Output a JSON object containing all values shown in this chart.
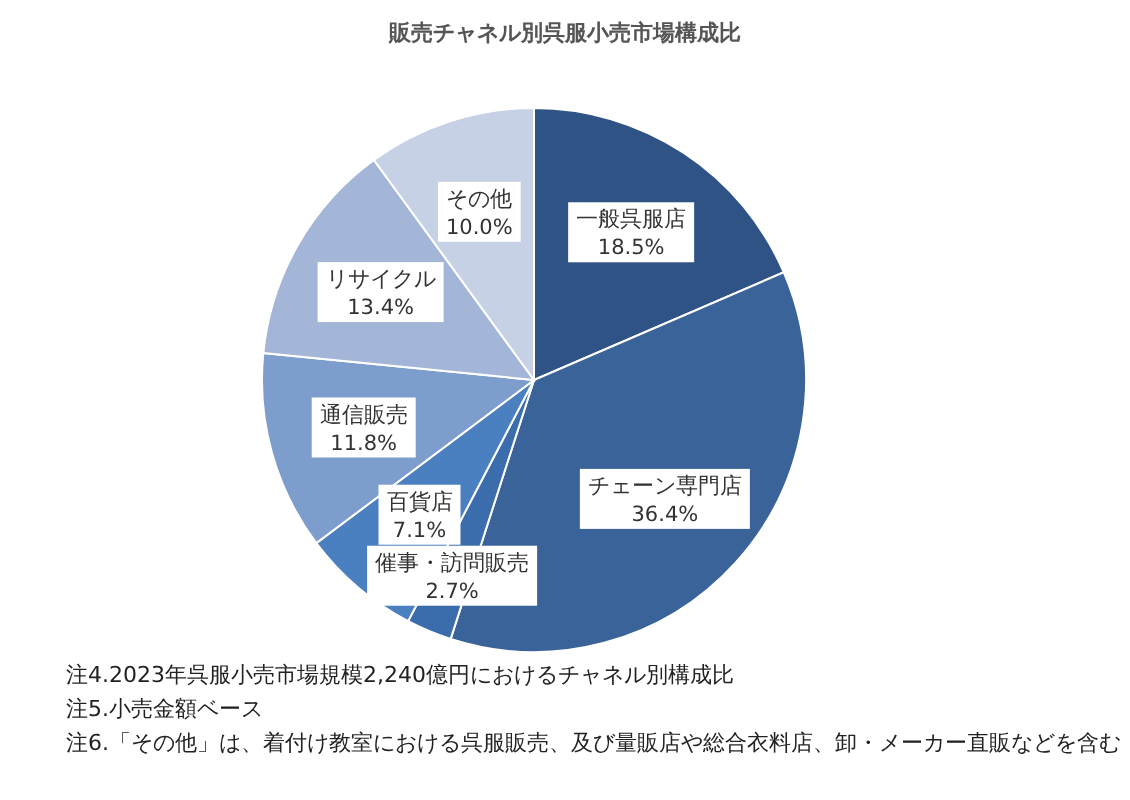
{
  "chart_data": {
    "type": "pie",
    "title": "販売チャネル別呉服小売市場構成比",
    "categories": [
      "一般呉服店",
      "チェーン専門店",
      "催事・訪問販売",
      "百貨店",
      "通信販売",
      "リサイクル",
      "その他"
    ],
    "values": [
      18.5,
      36.4,
      2.7,
      7.1,
      11.8,
      13.4,
      10.0
    ],
    "value_labels": [
      "18.5%",
      "36.4%",
      "2.7%",
      "7.1%",
      "11.8%",
      "13.4%",
      "10.0%"
    ],
    "colors": [
      "#2f5385",
      "#3a6399",
      "#3b6cab",
      "#4a7fc0",
      "#7d9dcd",
      "#a3b6d8",
      "#c6d1e6"
    ],
    "annotations": [
      "注4.2023年呉服小売市場規模2,240億円におけるチャネル別構成比",
      "注5.小売金額ベース",
      "注6.「その他」は、着付け教室における呉服販売、及び量販店や総合衣料店、卸・メーカー直販などを含む"
    ]
  }
}
